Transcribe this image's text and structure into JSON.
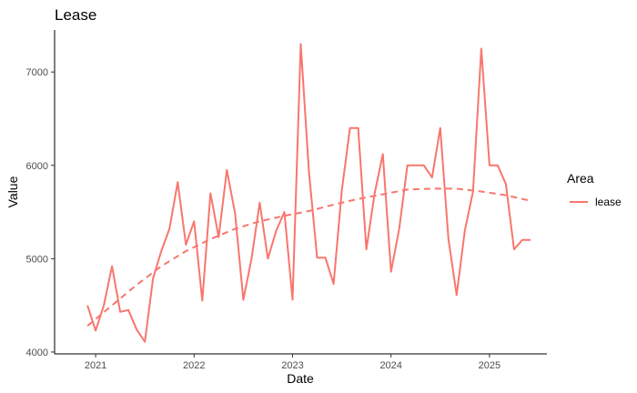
{
  "chart_data": {
    "type": "line",
    "title": "Lease",
    "xlabel": "Date",
    "ylabel": "Value",
    "x_ticks": [
      "2021",
      "2022",
      "2023",
      "2024",
      "2025"
    ],
    "y_ticks": [
      4000,
      5000,
      6000,
      7000
    ],
    "xlim": [
      "2020-08-01",
      "2025-08-01"
    ],
    "ylim": [
      3980,
      7450
    ],
    "grid": false,
    "legend": {
      "title": "Area",
      "position": "right"
    },
    "series": [
      {
        "name": "lease",
        "color": "#f8766d",
        "style": "solid",
        "x": [
          "2020-12",
          "2021-01",
          "2021-02",
          "2021-03",
          "2021-04",
          "2021-05",
          "2021-06",
          "2021-07",
          "2021-08",
          "2021-09",
          "2021-10",
          "2021-11",
          "2021-12",
          "2022-01",
          "2022-02",
          "2022-03",
          "2022-04",
          "2022-05",
          "2022-06",
          "2022-07",
          "2022-08",
          "2022-09",
          "2022-10",
          "2022-11",
          "2022-12",
          "2023-01",
          "2023-02",
          "2023-03",
          "2023-04",
          "2023-05",
          "2023-06",
          "2023-07",
          "2023-08",
          "2023-09",
          "2023-10",
          "2023-11",
          "2023-12",
          "2024-01",
          "2024-02",
          "2024-03",
          "2024-04",
          "2024-05",
          "2024-06",
          "2024-07",
          "2024-08",
          "2024-09",
          "2024-10",
          "2024-11",
          "2024-12",
          "2025-01",
          "2025-02",
          "2025-03",
          "2025-04",
          "2025-05",
          "2025-06"
        ],
        "values": [
          4500,
          4230,
          4500,
          4920,
          4430,
          4450,
          4240,
          4110,
          4790,
          5080,
          5320,
          5820,
          5150,
          5400,
          4550,
          5700,
          5230,
          5950,
          5480,
          4560,
          5000,
          5600,
          5000,
          5300,
          5500,
          4560,
          7300,
          5930,
          5010,
          5010,
          4730,
          5730,
          6400,
          6400,
          5100,
          5700,
          6120,
          4860,
          5320,
          6000,
          6000,
          6000,
          5870,
          6400,
          5210,
          4610,
          5300,
          5720,
          7250,
          6000,
          6000,
          5800,
          5100,
          5200,
          5200
        ]
      },
      {
        "name": "lease",
        "color": "#f8766d",
        "style": "dashed",
        "x": [
          "2020-12",
          "2021-03",
          "2021-06",
          "2021-09",
          "2021-12",
          "2022-03",
          "2022-06",
          "2022-09",
          "2022-12",
          "2023-03",
          "2023-06",
          "2023-09",
          "2023-12",
          "2024-03",
          "2024-06",
          "2024-09",
          "2024-12",
          "2025-03",
          "2025-06"
        ],
        "values": [
          4280,
          4500,
          4720,
          4920,
          5080,
          5210,
          5320,
          5400,
          5460,
          5510,
          5580,
          5640,
          5690,
          5740,
          5750,
          5750,
          5720,
          5680,
          5620
        ]
      }
    ]
  }
}
